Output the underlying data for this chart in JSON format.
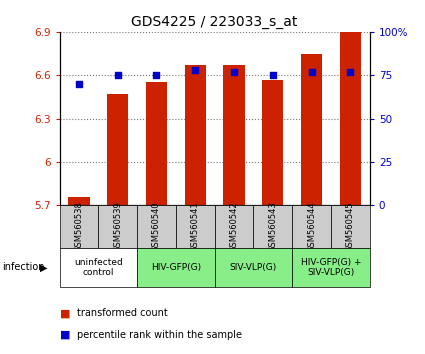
{
  "title": "GDS4225 / 223033_s_at",
  "samples": [
    "GSM560538",
    "GSM560539",
    "GSM560540",
    "GSM560541",
    "GSM560542",
    "GSM560543",
    "GSM560544",
    "GSM560545"
  ],
  "bar_values": [
    5.76,
    6.47,
    6.55,
    6.67,
    6.67,
    6.57,
    6.75,
    6.9
  ],
  "dot_values": [
    70,
    75,
    75,
    78,
    77,
    75,
    77,
    77
  ],
  "ylim_left": [
    5.7,
    6.9
  ],
  "ylim_right": [
    0,
    100
  ],
  "yticks_left": [
    5.7,
    6.0,
    6.3,
    6.6,
    6.9
  ],
  "yticks_right": [
    0,
    25,
    50,
    75,
    100
  ],
  "ytick_labels_left": [
    "5.7",
    "6",
    "6.3",
    "6.6",
    "6.9"
  ],
  "ytick_labels_right": [
    "0",
    "25",
    "50",
    "75",
    "100%"
  ],
  "bar_color": "#cc2200",
  "dot_color": "#0000cc",
  "dot_size": 16,
  "bar_width": 0.55,
  "grid_color": "#777777",
  "groups": [
    {
      "label": "uninfected\ncontrol",
      "start": 0,
      "end": 2,
      "color": "#ffffff"
    },
    {
      "label": "HIV-GFP(G)",
      "start": 2,
      "end": 4,
      "color": "#88ee88"
    },
    {
      "label": "SIV-VLP(G)",
      "start": 4,
      "end": 6,
      "color": "#88ee88"
    },
    {
      "label": "HIV-GFP(G) +\nSIV-VLP(G)",
      "start": 6,
      "end": 8,
      "color": "#88ee88"
    }
  ],
  "infection_label": "infection",
  "legend_bar_label": "transformed count",
  "legend_dot_label": "percentile rank within the sample",
  "sample_bg_color": "#cccccc",
  "title_fontsize": 10,
  "axis_fontsize": 7.5,
  "sample_fontsize": 6,
  "group_fontsize": 6.5,
  "legend_fontsize": 7
}
